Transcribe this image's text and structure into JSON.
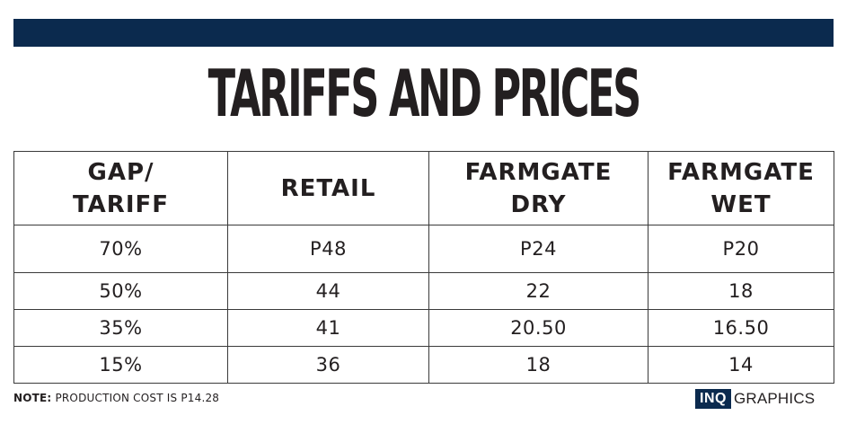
{
  "colors": {
    "banner": "#0b2a4e",
    "text": "#231f20",
    "border": "#3a3a3a"
  },
  "title": "TARIFFS AND PRICES",
  "chart_data": {
    "type": "table",
    "title": "TARIFFS AND PRICES",
    "columns": [
      {
        "line1": "GAP/",
        "line2": "TARIFF"
      },
      {
        "line1": "RETAIL",
        "line2": ""
      },
      {
        "line1": "FARMGATE",
        "line2": "DRY"
      },
      {
        "line1": "FARMGATE",
        "line2": "WET"
      }
    ],
    "rows": [
      [
        "70%",
        "P48",
        "P24",
        "P20"
      ],
      [
        "50%",
        "44",
        "22",
        "18"
      ],
      [
        "35%",
        "41",
        "20.50",
        "16.50"
      ],
      [
        "15%",
        "36",
        "18",
        "14"
      ]
    ]
  },
  "note": {
    "label": "NOTE:",
    "text": " PRODUCTION COST IS P14.28"
  },
  "logo": {
    "mark": "INQ",
    "text": "GRAPHICS"
  }
}
